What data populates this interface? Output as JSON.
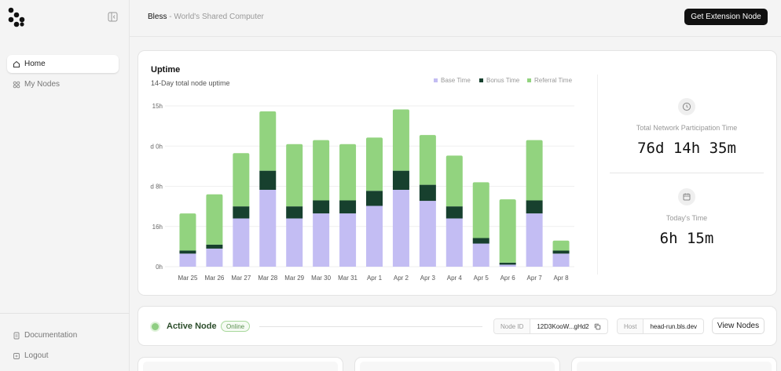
{
  "sidebar": {
    "items": [
      {
        "label": "Home",
        "icon": "home-icon",
        "active": true
      },
      {
        "label": "My Nodes",
        "icon": "nodes-icon",
        "active": false
      }
    ],
    "bottom_items": [
      {
        "label": "Documentation",
        "icon": "document-icon"
      },
      {
        "label": "Logout",
        "icon": "logout-icon"
      }
    ]
  },
  "header": {
    "brand": "Bless",
    "tagline": " - World's Shared Computer",
    "cta_label": "Get Extension Node"
  },
  "uptime": {
    "title": "Uptime",
    "subtitle": "14-Day total node uptime",
    "stats": {
      "total_label": "Total Network Participation Time",
      "total_value": "76d 14h 35m",
      "today_label": "Today's Time",
      "today_value": "6h 15m"
    }
  },
  "chart_data": {
    "type": "bar",
    "stacked": true,
    "categories": [
      "Mar 25",
      "Mar 26",
      "Mar 27",
      "Mar 28",
      "Mar 29",
      "Mar 30",
      "Mar 31",
      "Apr 1",
      "Apr 2",
      "Apr 3",
      "Apr 4",
      "Apr 5",
      "Apr 6",
      "Apr 7",
      "Apr 8"
    ],
    "y_tick_labels": [
      "0h",
      "16h",
      "d 8h",
      "d 0h",
      "15h"
    ],
    "ylim": [
      0,
      32
    ],
    "grid": true,
    "legend_position": "top-right",
    "series": [
      {
        "name": "Base Time",
        "color": "#c3bdf3",
        "values": [
          2.6,
          3.6,
          9.6,
          15.3,
          9.6,
          10.6,
          10.6,
          12.1,
          15.3,
          13.1,
          9.6,
          4.6,
          0.4,
          10.6,
          2.6
        ]
      },
      {
        "name": "Bonus Time",
        "color": "#17402e",
        "values": [
          0.6,
          0.8,
          2.4,
          3.8,
          2.4,
          2.6,
          2.6,
          3.0,
          3.8,
          3.2,
          2.4,
          1.1,
          0.4,
          2.6,
          0.6
        ]
      },
      {
        "name": "Referral Time",
        "color": "#92d37f",
        "values": [
          7.4,
          10.0,
          10.6,
          11.8,
          12.4,
          12.0,
          11.2,
          10.6,
          12.2,
          9.9,
          10.1,
          11.1,
          12.6,
          12.0,
          2.0
        ]
      }
    ]
  },
  "node": {
    "title": "Active Node",
    "status": "Online",
    "id_label": "Node ID",
    "id_value": "12D3KooW...gHd2",
    "host_label": "Host",
    "host_value": "head-run.bls.dev",
    "view_label": "View Nodes"
  }
}
